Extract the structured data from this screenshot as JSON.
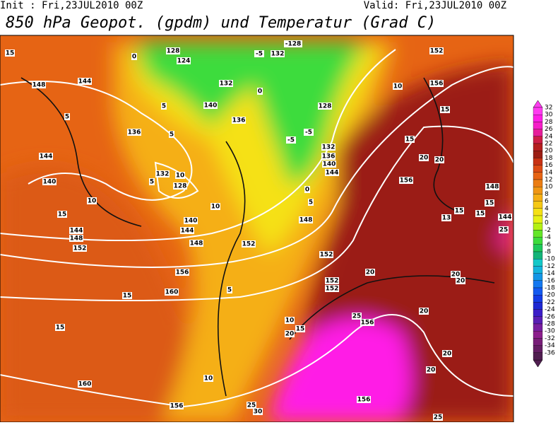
{
  "header": {
    "init": "Init : Fri,23JUL2010 00Z",
    "valid": "Valid: Fri,23JUL2010 00Z",
    "title": "850 hPa Geopot. (gpdm) und Temperatur (Grad C)"
  },
  "colorbar": {
    "labels": [
      "32",
      "30",
      "28",
      "26",
      "24",
      "22",
      "20",
      "18",
      "16",
      "14",
      "12",
      "10",
      "8",
      "6",
      "4",
      "2",
      "0",
      "-2",
      "-4",
      "-6",
      "-8",
      "-10",
      "-12",
      "-14",
      "-16",
      "-18",
      "-20",
      "-22",
      "-24",
      "-26",
      "-28",
      "-30",
      "-32",
      "-34",
      "-36"
    ],
    "colors": [
      "#ff3cf0",
      "#ff1ee6",
      "#f51ec8",
      "#e61e9b",
      "#cd1e46",
      "#b41e1e",
      "#9b1e14",
      "#c83214",
      "#dc4b14",
      "#e66414",
      "#eb7d14",
      "#f09614",
      "#f5af14",
      "#f5c814",
      "#f5e114",
      "#e6f014",
      "#b4f014",
      "#64e628",
      "#3cdc3c",
      "#1ec85a",
      "#14b478",
      "#14c8c8",
      "#14b4dc",
      "#1496e6",
      "#1478f0",
      "#145af0",
      "#143ce6",
      "#1e28d2",
      "#3c1ec8",
      "#5a1eb4",
      "#781ea0",
      "#8c1e8c",
      "#781e78",
      "#641e64",
      "#501e50"
    ]
  },
  "map": {
    "contour_labels": [
      "15",
      "148",
      "144",
      "5",
      "136",
      "144",
      "140",
      "10",
      "15",
      "144",
      "148",
      "152",
      "132",
      "10",
      "128",
      "140",
      "144",
      "148",
      "152",
      "156",
      "160",
      "15",
      "15",
      "5",
      "160",
      "156",
      "10",
      "128",
      "124",
      "0",
      "132",
      "140",
      "136",
      "0",
      "-5",
      "132",
      "-128",
      "152",
      "156",
      "10",
      "15",
      "128",
      "-5",
      "-5",
      "132",
      "136",
      "140",
      "144",
      "0",
      "5",
      "148",
      "15",
      "20",
      "20",
      "156",
      "148",
      "15",
      "15",
      "15",
      "144",
      "13",
      "25",
      "152",
      "152",
      "152",
      "20",
      "20",
      "20",
      "20",
      "25",
      "156",
      "10",
      "15",
      "20",
      "20",
      "20",
      "156",
      "25",
      "30",
      "25",
      "10",
      "5",
      "5",
      "5"
    ]
  }
}
